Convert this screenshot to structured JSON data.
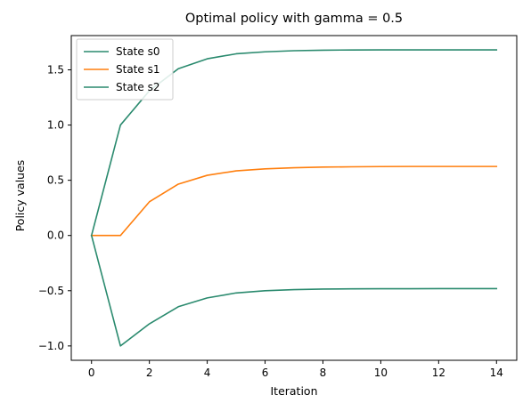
{
  "chart_data": {
    "type": "line",
    "title": "Optimal policy with gamma = 0.5",
    "xlabel": "Iteration",
    "ylabel": "Policy values",
    "x": [
      0,
      1,
      2,
      3,
      4,
      5,
      6,
      7,
      8,
      9,
      10,
      11,
      12,
      13,
      14
    ],
    "xlim": [
      -0.7,
      14.7
    ],
    "ylim": [
      -1.13,
      1.81
    ],
    "x_ticks": [
      0,
      2,
      4,
      6,
      8,
      10,
      12,
      14
    ],
    "x_tick_labels": [
      "0",
      "2",
      "4",
      "6",
      "8",
      "10",
      "12",
      "14"
    ],
    "y_ticks": [
      -1.0,
      -0.5,
      0.0,
      0.5,
      1.0,
      1.5
    ],
    "y_tick_labels": [
      "−1.0",
      "−0.5",
      "0.0",
      "0.5",
      "1.0",
      "1.5"
    ],
    "grid": false,
    "legend_position": "top-left",
    "series": [
      {
        "name": "State s0",
        "color": "#2a8a6e",
        "values": [
          0.0,
          1.0,
          1.31,
          1.51,
          1.6,
          1.645,
          1.663,
          1.673,
          1.678,
          1.68,
          1.681,
          1.681,
          1.681,
          1.681,
          1.681
        ]
      },
      {
        "name": "State s1",
        "color": "#ff7f0e",
        "values": [
          0.0,
          0.0,
          0.305,
          0.465,
          0.545,
          0.585,
          0.603,
          0.613,
          0.619,
          0.622,
          0.624,
          0.625,
          0.625,
          0.625,
          0.625
        ]
      },
      {
        "name": "State s2",
        "color": "#2a8a6e",
        "values": [
          0.0,
          -1.0,
          -0.8,
          -0.645,
          -0.565,
          -0.52,
          -0.5,
          -0.49,
          -0.485,
          -0.483,
          -0.482,
          -0.482,
          -0.481,
          -0.481,
          -0.481
        ]
      }
    ]
  }
}
